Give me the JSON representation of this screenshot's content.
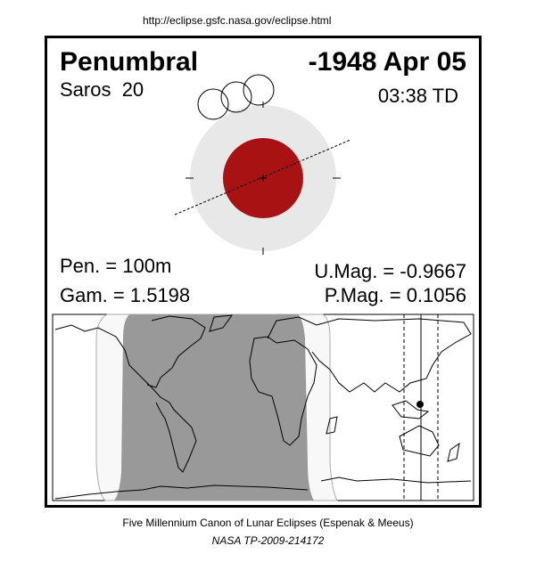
{
  "header_url": "http://eclipse.gsfc.nasa.gov/eclipse.html",
  "eclipse": {
    "type": "Penumbral",
    "date": "-1948 Apr 05",
    "saros": "Saros  20",
    "time": "03:38 TD",
    "pen_duration": "Pen. = 100m",
    "gamma": "Gam. = 1.5198",
    "umbral_mag": "U.Mag. = -0.9667",
    "penumbral_mag": "P.Mag. = 0.1056"
  },
  "colors": {
    "umbra": "#a81212",
    "penumbra": "#e8e8e8",
    "night": "#999999",
    "penumbral_zone": "#f8f8f8"
  },
  "footer": {
    "line1": "Five Millennium Canon of Lunar Eclipses (Espenak & Meeus)",
    "line2": "NASA TP-2009-214172"
  }
}
